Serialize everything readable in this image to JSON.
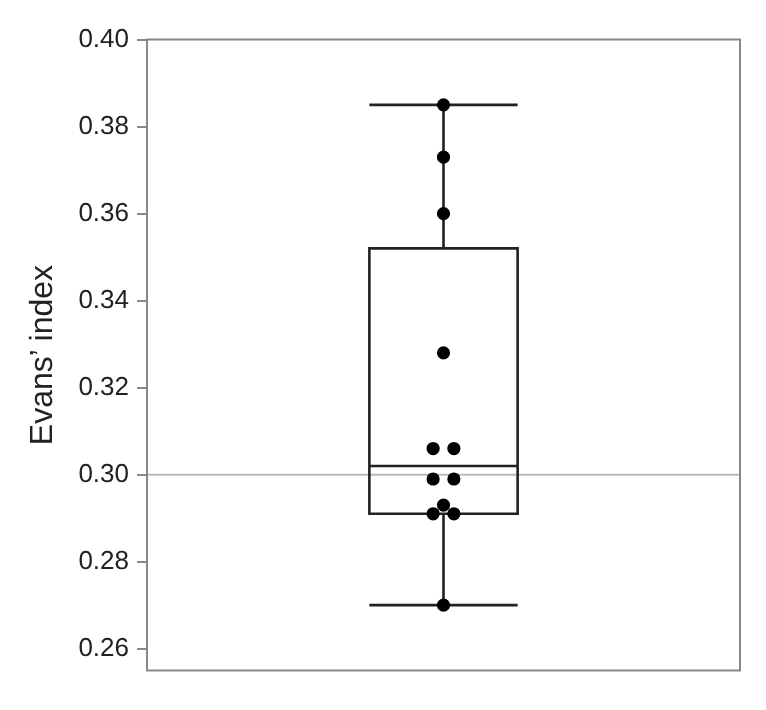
{
  "chart_data": {
    "type": "box",
    "ylabel": "Evans’ index",
    "categories": [
      null
    ],
    "boxes": [
      {
        "low": 0.27,
        "q1": 0.291,
        "median": 0.302,
        "q3": 0.352,
        "high": 0.385
      }
    ],
    "series": [
      {
        "type": "scatter",
        "color": "#000000",
        "x": [
          null,
          null,
          null,
          null,
          null,
          null,
          null,
          null,
          null,
          null,
          null,
          null
        ],
        "values": [
          0.385,
          0.373,
          0.36,
          0.328,
          0.306,
          0.306,
          0.299,
          0.299,
          0.293,
          0.291,
          0.291,
          0.27
        ]
      }
    ],
    "ylim": [
      0.255,
      0.4
    ],
    "yticks": [
      {
        "value": 0.26,
        "label": "0.26"
      },
      {
        "value": 0.28,
        "label": "0.28"
      },
      {
        "value": 0.3,
        "label": "0.30"
      },
      {
        "value": 0.32,
        "label": "0.32"
      },
      {
        "value": 0.34,
        "label": "0.34"
      },
      {
        "value": 0.36,
        "label": "0.36"
      },
      {
        "value": 0.38,
        "label": "0.38"
      },
      {
        "value": 0.4,
        "label": "0.40"
      }
    ],
    "ref_lines": [
      {
        "axis": "y",
        "value": 0.3,
        "color": "#bbbbbb"
      }
    ],
    "grid": false,
    "legend": false,
    "marker": "circle",
    "tick_labels": "y"
  }
}
